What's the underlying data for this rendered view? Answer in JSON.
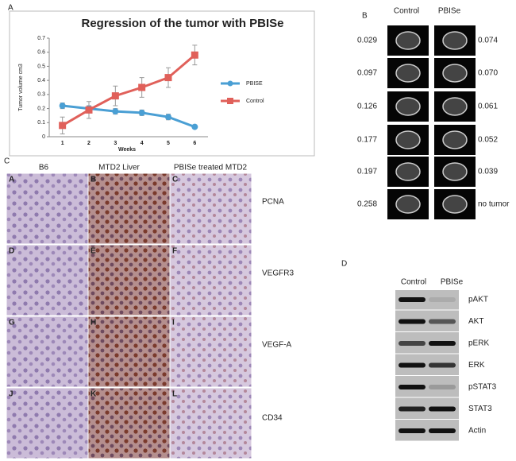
{
  "chart_data": {
    "type": "line",
    "panel": "A",
    "title": "Regression of the tumor with PBISe",
    "x_label": "Weeks",
    "y_label": "Tumor volume cm3",
    "categories": [
      "1",
      "2",
      "3",
      "4",
      "5",
      "6"
    ],
    "series": [
      {
        "name": "PBISE",
        "color": "#4a9fd4",
        "marker": "circle",
        "values": [
          0.22,
          0.2,
          0.18,
          0.17,
          0.14,
          0.07
        ],
        "errors": [
          0.02,
          0.02,
          0.02,
          0.02,
          0.02,
          0.01
        ]
      },
      {
        "name": "Control",
        "color": "#e0605a",
        "marker": "square",
        "values": [
          0.08,
          0.19,
          0.29,
          0.35,
          0.42,
          0.58
        ],
        "errors": [
          0.06,
          0.06,
          0.07,
          0.07,
          0.07,
          0.07
        ]
      }
    ],
    "ylim": [
      0,
      0.7
    ],
    "yticks": [
      0,
      0.1,
      0.2,
      0.3,
      0.4,
      0.5,
      0.6,
      0.7
    ],
    "grid": false,
    "legend": "right"
  },
  "mri": {
    "panel": "B",
    "columns": [
      "Control",
      "PBISe"
    ],
    "control_values": [
      "0.029",
      "0.097",
      "0.126",
      "0.177",
      "0.197",
      "0.258"
    ],
    "pbise_values": [
      "0.074",
      "0.070",
      "0.061",
      "0.052",
      "0.039",
      "no tumor"
    ]
  },
  "ihc": {
    "panel": "C",
    "columns": [
      "B6",
      "MTD2 Liver",
      "PBISe treated MTD2"
    ],
    "rows": [
      "PCNA",
      "VEGFR3",
      "VEGF-A",
      "CD34"
    ],
    "tiles": [
      "A",
      "B",
      "C",
      "D",
      "E",
      "F",
      "G",
      "H",
      "I",
      "J",
      "K",
      "L"
    ]
  },
  "western": {
    "panel": "D",
    "columns": [
      "Control",
      "PBISe"
    ],
    "bands": [
      "pAKT",
      "AKT",
      "pERK",
      "ERK",
      "pSTAT3",
      "STAT3",
      "Actin"
    ]
  }
}
